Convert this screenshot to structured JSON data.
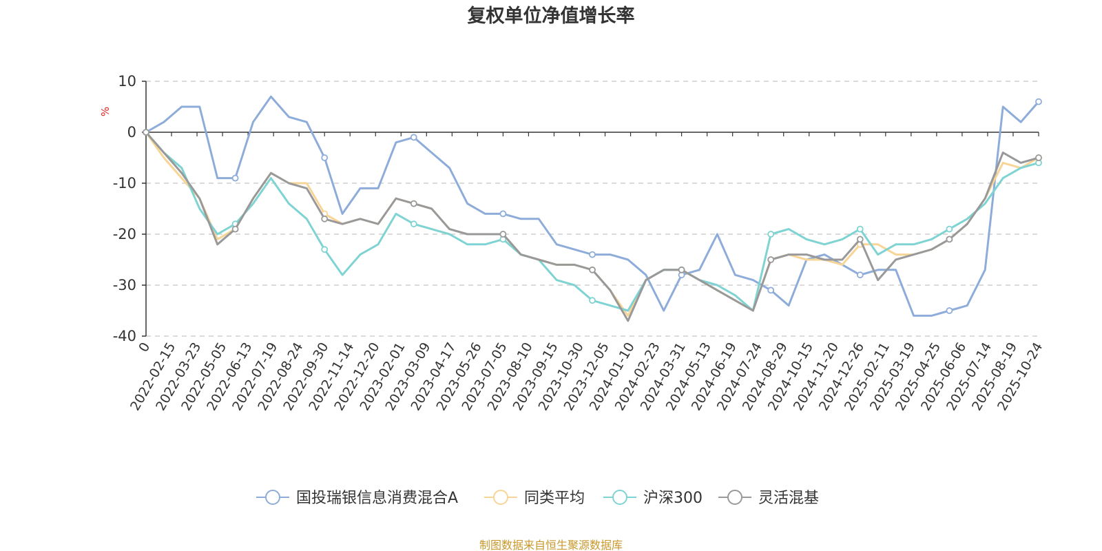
{
  "chart_data": {
    "type": "line",
    "title": "复权单位净值增长率",
    "ylabel": "%",
    "xlabel": "",
    "ylim": [
      -40,
      10
    ],
    "y_ticks": [
      10,
      0,
      -10,
      -20,
      -30,
      -40
    ],
    "grid": true,
    "legend_position": "bottom",
    "x_ticks": [
      "0",
      "2022-02-15",
      "2022-03-23",
      "2022-05-05",
      "2022-06-13",
      "2022-07-19",
      "2022-08-24",
      "2022-09-30",
      "2022-11-14",
      "2022-12-20",
      "2023-02-01",
      "2023-03-09",
      "2023-04-17",
      "2023-05-26",
      "2023-07-05",
      "2023-08-10",
      "2023-09-15",
      "2023-10-30",
      "2023-12-05",
      "2024-01-10",
      "2024-02-23",
      "2024-03-31",
      "2024-05-13",
      "2024-06-19",
      "2024-07-24",
      "2024-08-29",
      "2024-10-15",
      "2024-11-20",
      "2024-12-26",
      "2025-02-11",
      "2025-03-19",
      "2025-04-25",
      "2025-06-06",
      "2025-07-14",
      "2025-08-19",
      "2025-10-24"
    ],
    "series": [
      {
        "name": "国投瑞银信息消费混合A",
        "color": "#8eacda",
        "values": [
          0,
          2,
          5,
          5,
          -9,
          -9,
          2,
          7,
          3,
          2,
          -5,
          -16,
          -11,
          -11,
          -2,
          -1,
          -4,
          -7,
          -14,
          -16,
          -16,
          -17,
          -17,
          -22,
          -23,
          -24,
          -24,
          -25,
          -28,
          -35,
          -28,
          -27,
          -20,
          -28,
          -29,
          -31,
          -34,
          -25,
          -24,
          -26,
          -28,
          -27,
          -27,
          -36,
          -36,
          -35,
          -34,
          -27,
          5,
          2,
          6
        ]
      },
      {
        "name": "同类平均",
        "color": "#f8d596",
        "values": [
          0,
          -5,
          -9,
          -13,
          -21,
          -19,
          -13,
          -8,
          -10,
          -10,
          -16,
          -18,
          -17,
          -18,
          -13,
          -14,
          -15,
          -19,
          -20,
          -20,
          -20,
          -24,
          -25,
          -26,
          -26,
          -27,
          -31,
          -36,
          -29,
          -27,
          -27,
          -29,
          -31,
          -33,
          -35,
          -25,
          -24,
          -25,
          -25,
          -26,
          -22,
          -22,
          -24,
          -24,
          -23,
          -21,
          -18,
          -13,
          -6,
          -7,
          -5
        ]
      },
      {
        "name": "沪深300",
        "color": "#7fd3d3",
        "values": [
          0,
          -4,
          -7,
          -15,
          -20,
          -18,
          -14,
          -9,
          -14,
          -17,
          -23,
          -28,
          -24,
          -22,
          -16,
          -18,
          -19,
          -20,
          -22,
          -22,
          -21,
          -24,
          -25,
          -29,
          -30,
          -33,
          -34,
          -35,
          -29,
          -27,
          -27,
          -29,
          -30,
          -32,
          -35,
          -20,
          -19,
          -21,
          -22,
          -21,
          -19,
          -24,
          -22,
          -22,
          -21,
          -19,
          -17,
          -14,
          -9,
          -7,
          -6
        ]
      },
      {
        "name": "灵活混基",
        "color": "#999999",
        "values": [
          0,
          -4,
          -8,
          -13,
          -22,
          -19,
          -13,
          -8,
          -10,
          -11,
          -17,
          -18,
          -17,
          -18,
          -13,
          -14,
          -15,
          -19,
          -20,
          -20,
          -20,
          -24,
          -25,
          -26,
          -26,
          -27,
          -31,
          -37,
          -29,
          -27,
          -27,
          -29,
          -31,
          -33,
          -35,
          -25,
          -24,
          -24,
          -25,
          -25,
          -21,
          -29,
          -25,
          -24,
          -23,
          -21,
          -18,
          -13,
          -4,
          -6,
          -5
        ]
      }
    ]
  },
  "legend_items": [
    {
      "label": "国投瑞银信息消费混合A"
    },
    {
      "label": "同类平均"
    },
    {
      "label": "沪深300"
    },
    {
      "label": "灵活混基"
    }
  ],
  "source_note": "制图数据来自恒生聚源数据库"
}
